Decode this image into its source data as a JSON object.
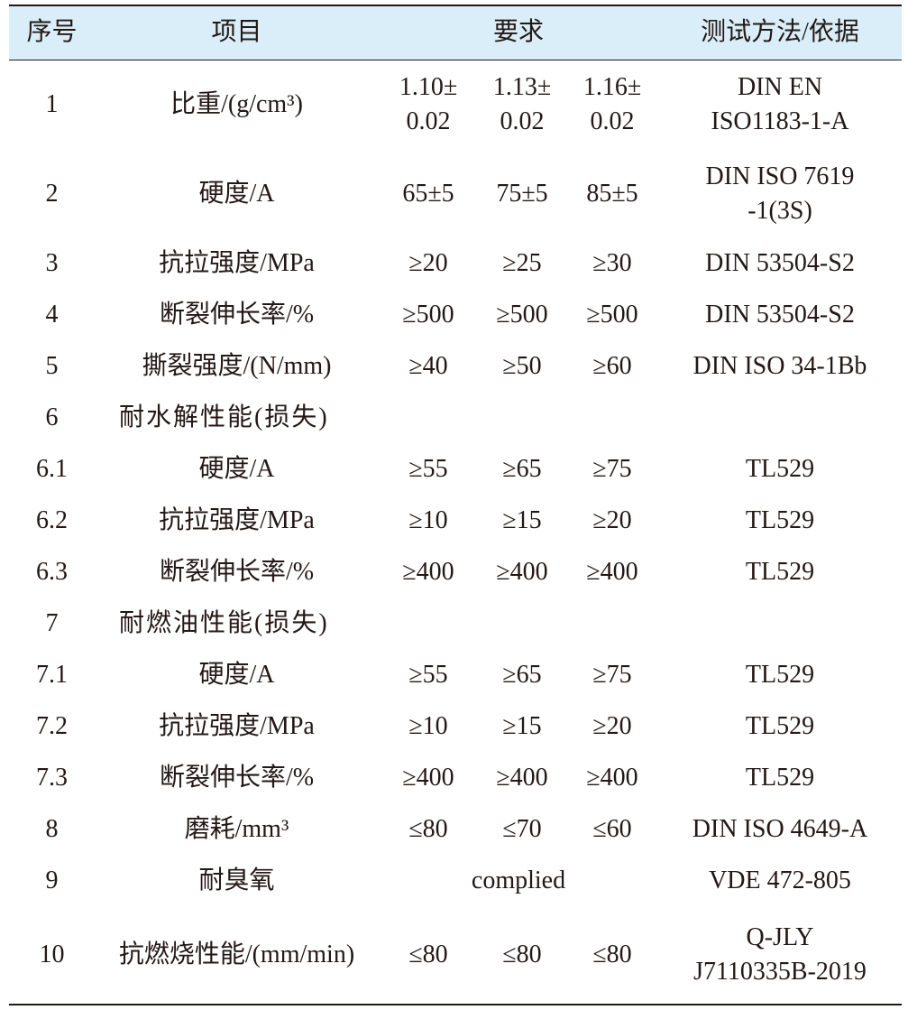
{
  "table": {
    "header": [
      "序号",
      "项目",
      "要求",
      "测试方法/依据"
    ],
    "rows": [
      [
        "1",
        "比重/(g/cm³)",
        [
          "1.10±",
          "0.02"
        ],
        [
          "1.13±",
          "0.02"
        ],
        [
          "1.16±",
          "0.02"
        ],
        [
          "DIN EN",
          "ISO1183-1-A"
        ]
      ],
      [
        "2",
        "硬度/A",
        "65±5",
        "75±5",
        "85±5",
        [
          "DIN ISO 7619",
          "-1(3S)"
        ]
      ],
      [
        "3",
        "抗拉强度/MPa",
        "≥20",
        "≥25",
        "≥30",
        "DIN 53504-S2"
      ],
      [
        "4",
        "断裂伸长率/%",
        "≥500",
        "≥500",
        "≥500",
        "DIN 53504-S2"
      ],
      [
        "5",
        "撕裂强度/(N/mm)",
        "≥40",
        "≥50",
        "≥60",
        "DIN ISO 34-1Bb"
      ],
      [
        "6",
        "耐水解性能(损失)"
      ],
      [
        "6.1",
        "硬度/A",
        "≥55",
        "≥65",
        "≥75",
        "TL529"
      ],
      [
        "6.2",
        "抗拉强度/MPa",
        "≥10",
        "≥15",
        "≥20",
        "TL529"
      ],
      [
        "6.3",
        "断裂伸长率/%",
        "≥400",
        "≥400",
        "≥400",
        "TL529"
      ],
      [
        "7",
        "耐燃油性能(损失)"
      ],
      [
        "7.1",
        "硬度/A",
        "≥55",
        "≥65",
        "≥75",
        "TL529"
      ],
      [
        "7.2",
        "抗拉强度/MPa",
        "≥10",
        "≥15",
        "≥20",
        "TL529"
      ],
      [
        "7.3",
        "断裂伸长率/%",
        "≥400",
        "≥400",
        "≥400",
        "TL529"
      ],
      [
        "8",
        "磨耗/mm³",
        "≤80",
        "≤70",
        "≤60",
        "DIN ISO 4649-A"
      ],
      [
        "9",
        "耐臭氧",
        "complied",
        "VDE 472-805"
      ],
      [
        "10",
        "抗燃烧性能/(mm/min)",
        "≤80",
        "≤80",
        "≤80",
        [
          "Q-JLY",
          "J7110335B-2019"
        ]
      ]
    ]
  }
}
